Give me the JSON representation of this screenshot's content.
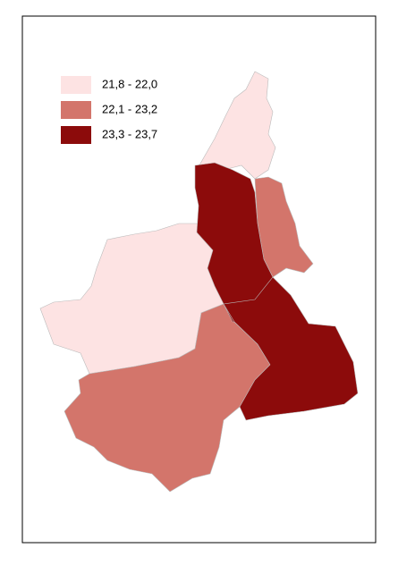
{
  "legend": {
    "items": [
      {
        "label": "21,8 - 22,0",
        "color": "#fde3e3"
      },
      {
        "label": "22,1 - 23,2",
        "color": "#d3756b"
      },
      {
        "label": "23,3 - 23,7",
        "color": "#8c0b0b"
      }
    ]
  }
}
